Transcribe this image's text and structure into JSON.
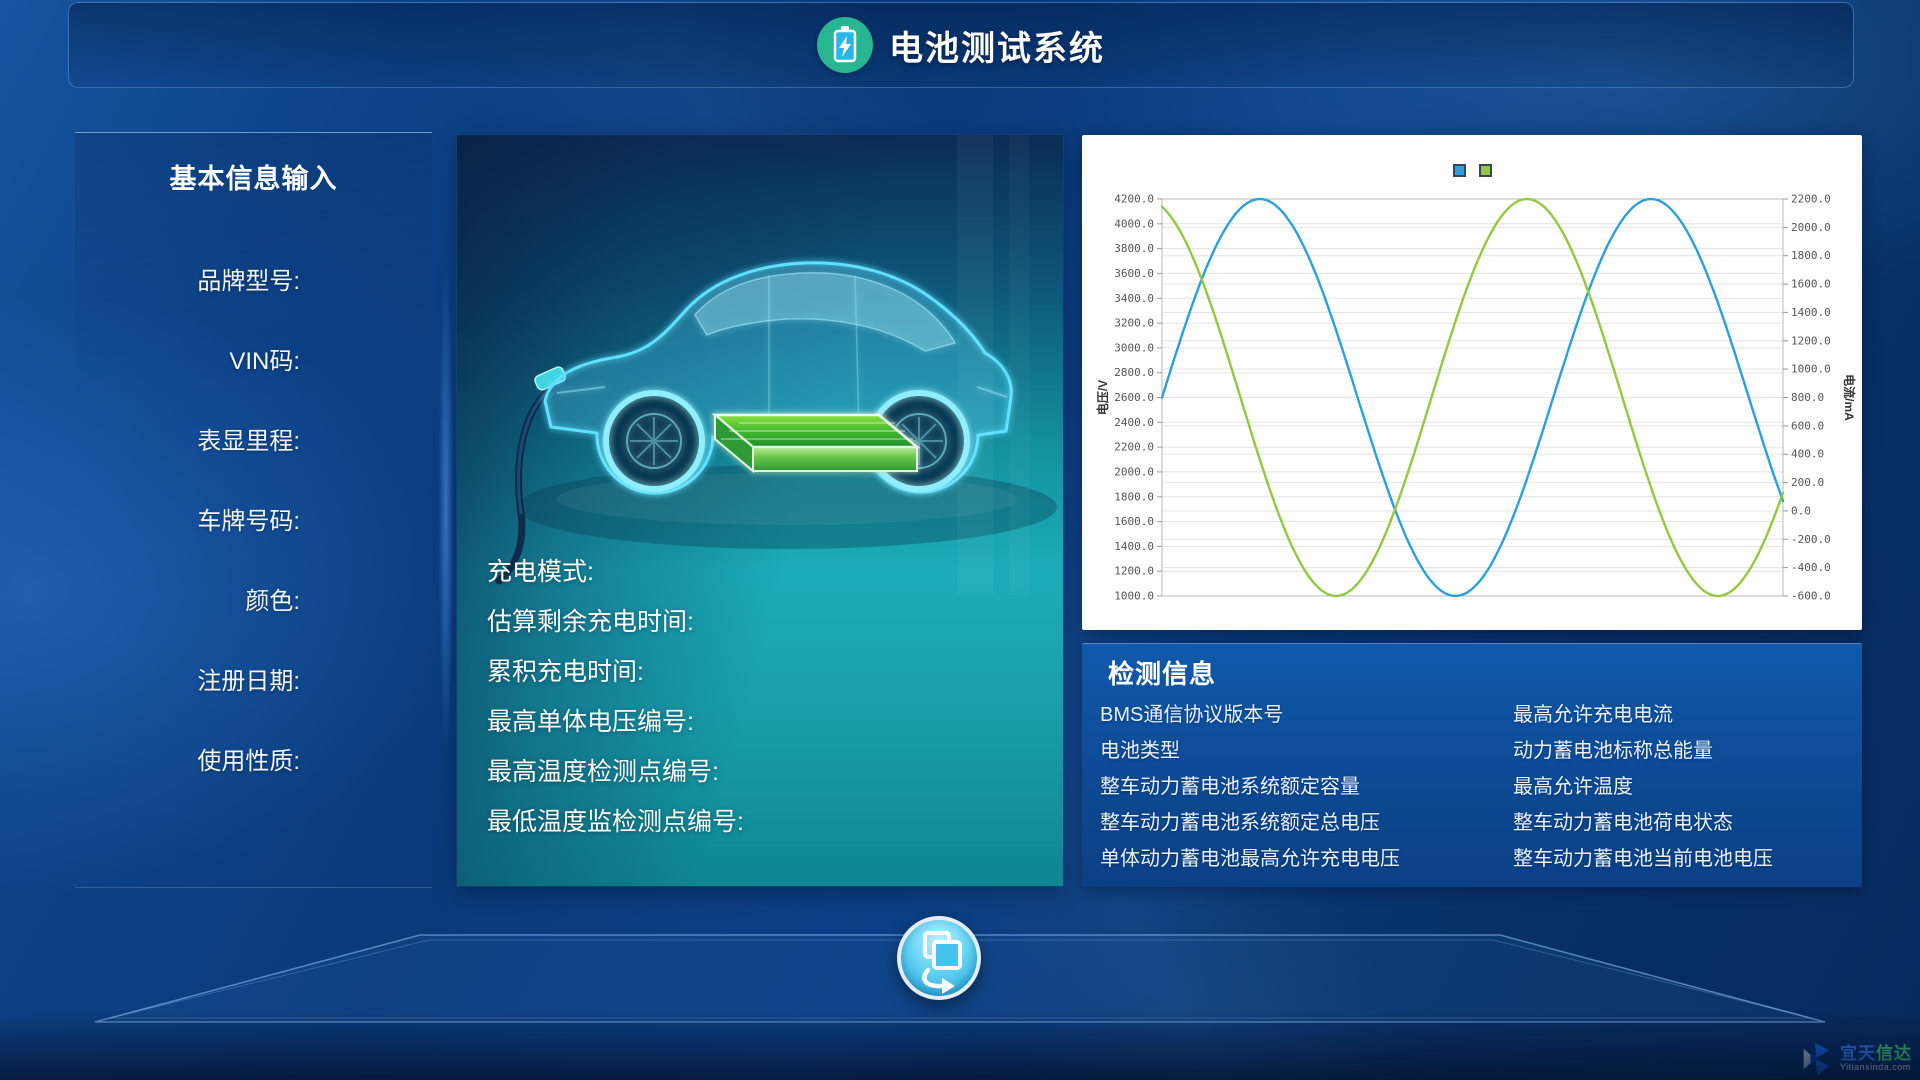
{
  "header": {
    "title": "电池测试系统",
    "icon": "battery-charging-icon"
  },
  "basic_info": {
    "title": "基本信息输入",
    "fields": [
      {
        "label": "品牌型号:",
        "value": ""
      },
      {
        "label": "VIN码:",
        "value": ""
      },
      {
        "label": "表显里程:",
        "value": ""
      },
      {
        "label": "车牌号码:",
        "value": ""
      },
      {
        "label": "颜色:",
        "value": ""
      },
      {
        "label": "注册日期:",
        "value": ""
      },
      {
        "label": "使用性质:",
        "value": ""
      }
    ]
  },
  "vehicle_panel": {
    "illustration": "ev-car-with-battery-and-charging-cable",
    "fields": [
      {
        "label": "充电模式:",
        "value": ""
      },
      {
        "label": "估算剩余充电时间:",
        "value": ""
      },
      {
        "label": "累积充电时间:",
        "value": ""
      },
      {
        "label": "最高单体电压编号:",
        "value": ""
      },
      {
        "label": "最高温度检测点编号:",
        "value": ""
      },
      {
        "label": "最低温度监检测点编号:",
        "value": ""
      }
    ]
  },
  "chart_data": {
    "type": "line",
    "title": "",
    "grid": true,
    "grid_color": "#e3e3e3",
    "axis_color": "#b9b9b9",
    "tick_label_color": "#555555",
    "legend": {
      "labels_visible": false,
      "items": [
        {
          "name": "电压",
          "color": "#2b9fe0"
        },
        {
          "name": "电流",
          "color": "#93c840"
        }
      ]
    },
    "x_axis": {
      "label": "",
      "ticks_visible": false,
      "range_fraction": [
        0,
        1
      ]
    },
    "y_left": {
      "label": "电压/V",
      "min": 1000,
      "max": 4200,
      "step": 200,
      "ticks": [
        "4200.0",
        "4000.0",
        "3800.0",
        "3600.0",
        "3400.0",
        "3200.0",
        "3000.0",
        "2800.0",
        "2600.0",
        "2400.0",
        "2200.0",
        "2000.0",
        "1800.0",
        "1600.0",
        "1400.0",
        "1200.0",
        "1000.0"
      ]
    },
    "y_right": {
      "label": "电流/mA",
      "min": -600,
      "max": 2200,
      "step": 200,
      "ticks": [
        "2200.0",
        "2000.0",
        "1800.0",
        "1600.0",
        "1400.0",
        "1200.0",
        "1000.0",
        "800.0",
        "600.0",
        "400.0",
        "200.0",
        "0.0",
        "-200.0",
        "-400.0",
        "-600.0"
      ]
    },
    "series": [
      {
        "name": "电压",
        "axis": "left",
        "color": "#2b9fe0",
        "shape": "sine",
        "mid": 2600,
        "amplitude": 1600,
        "period_fraction": 0.63,
        "phase_rad": 0,
        "start_value": 2600,
        "peak": 4200,
        "trough": 1000,
        "end_value": 1770
      },
      {
        "name": "电流",
        "axis": "right",
        "color": "#93c840",
        "shape": "sine",
        "mid": 800,
        "amplitude": 1400,
        "period_fraction": 0.615,
        "phase_rad": 1.85,
        "start_value": 2070,
        "peak": 2200,
        "trough": -600,
        "end_value": 80
      }
    ]
  },
  "detection_info": {
    "title": "检测信息",
    "left_column": [
      "BMS通信协议版本号",
      "电池类型",
      "整车动力蓄电池系统额定容量",
      "整车动力蓄电池系统额定总电压",
      "单体动力蓄电池最高允许充电电压"
    ],
    "right_column": [
      "最高允许充电电流",
      "动力蓄电池标称总能量",
      "最高允许温度",
      "整车动力蓄电池荷电状态",
      "整车动力蓄电池当前电池电压"
    ]
  },
  "footer": {
    "switch_button_icon": "switch-screens-icon"
  },
  "watermark": {
    "brand_part1": "宜天",
    "brand_part2": "信达",
    "domain": "Yitianxinda.com"
  }
}
